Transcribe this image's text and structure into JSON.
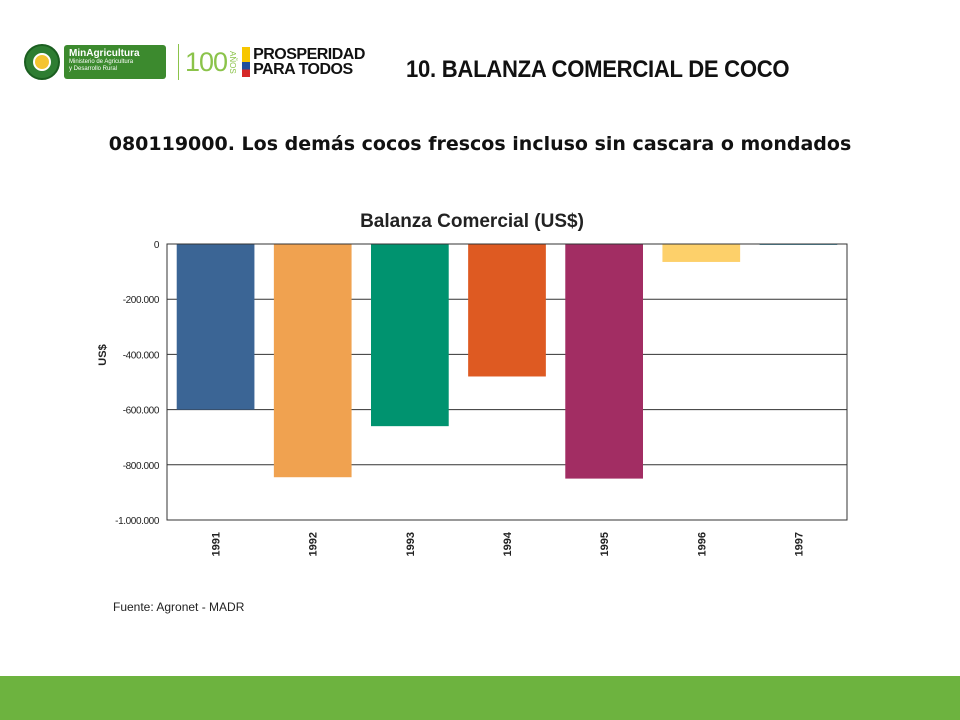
{
  "header": {
    "ministry_name": "MinAgricultura",
    "ministry_subtitle_1": "Ministerio de Agricultura",
    "ministry_subtitle_2": "y Desarrollo Rural",
    "centenary_number": "100",
    "centenary_word": "AÑOS",
    "slogan_line1": "PROSPERIDAD",
    "slogan_line2": "PARA TODOS"
  },
  "slide": {
    "title": "10. BALANZA COMERCIAL DE COCO",
    "subtitle": "080119000. Los demás cocos frescos incluso sin cascara o mondados",
    "source": "Fuente: Agronet - MADR"
  },
  "chart_data": {
    "type": "bar",
    "title": "Balanza Comercial (US$)",
    "ylabel": "US$",
    "xlabel": "",
    "categories": [
      "1991",
      "1992",
      "1993",
      "1994",
      "1995",
      "1996",
      "1997"
    ],
    "values": [
      -600000,
      -845000,
      -660000,
      -480000,
      -850000,
      -65000,
      -3000
    ],
    "colors": [
      "#3b6595",
      "#f0a250",
      "#00936f",
      "#de5a22",
      "#a22d63",
      "#fdd06a",
      "#5aa0b8"
    ],
    "ylim": [
      -1000000,
      0
    ],
    "yticks": [
      0,
      -200000,
      -400000,
      -600000,
      -800000,
      -1000000
    ],
    "ytick_labels": [
      "0",
      "-200.000",
      "-400.000",
      "-600.000",
      "-800.000",
      "-1.000.000"
    ],
    "grid": true,
    "legend": "none"
  }
}
